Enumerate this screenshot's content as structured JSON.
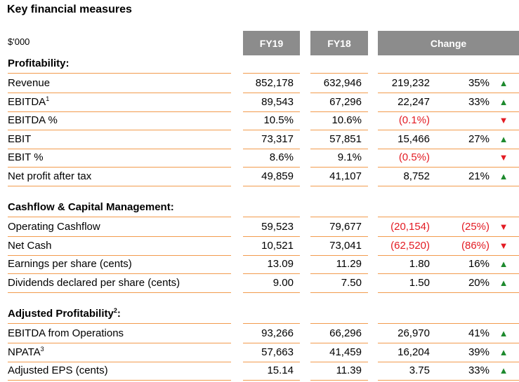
{
  "title": "Key financial measures",
  "unit": "$'000",
  "headers": {
    "fy19": "FY19",
    "fy18": "FY18",
    "change": "Change"
  },
  "sections": [
    {
      "title": "Profitability:",
      "title_sup": "",
      "rows": [
        {
          "label": "Revenue",
          "sup": "",
          "fy19": "852,178",
          "fy18": "632,946",
          "change": "219,232",
          "pct": "35%",
          "trend": "up"
        },
        {
          "label": "EBITDA",
          "sup": "1",
          "fy19": "89,543",
          "fy18": "67,296",
          "change": "22,247",
          "pct": "33%",
          "trend": "up"
        },
        {
          "label": "EBITDA %",
          "sup": "",
          "fy19": "10.5%",
          "fy18": "10.6%",
          "change": "(0.1%)",
          "pct": "",
          "trend": "down"
        },
        {
          "label": "EBIT",
          "sup": "",
          "fy19": "73,317",
          "fy18": "57,851",
          "change": "15,466",
          "pct": "27%",
          "trend": "up"
        },
        {
          "label": "EBIT %",
          "sup": "",
          "fy19": "8.6%",
          "fy18": "9.1%",
          "change": "(0.5%)",
          "pct": "",
          "trend": "down"
        },
        {
          "label": "Net profit after tax",
          "sup": "",
          "fy19": "49,859",
          "fy18": "41,107",
          "change": "8,752",
          "pct": "21%",
          "trend": "up"
        }
      ]
    },
    {
      "title": "Cashflow & Capital Management:",
      "title_sup": "",
      "rows": [
        {
          "label": "Operating Cashflow",
          "sup": "",
          "fy19": "59,523",
          "fy18": "79,677",
          "change": "(20,154)",
          "pct": "(25%)",
          "trend": "down"
        },
        {
          "label": "Net Cash",
          "sup": "",
          "fy19": "10,521",
          "fy18": "73,041",
          "change": "(62,520)",
          "pct": "(86%)",
          "trend": "down"
        },
        {
          "label": "Earnings per share (cents)",
          "sup": "",
          "fy19": "13.09",
          "fy18": "11.29",
          "change": "1.80",
          "pct": "16%",
          "trend": "up"
        },
        {
          "label": "Dividends declared per share (cents)",
          "sup": "",
          "fy19": "9.00",
          "fy18": "7.50",
          "change": "1.50",
          "pct": "20%",
          "trend": "up"
        }
      ]
    },
    {
      "title": "Adjusted Profitability",
      "title_sup": "2",
      "title_suffix": ":",
      "rows": [
        {
          "label": "EBITDA from Operations",
          "sup": "",
          "fy19": "93,266",
          "fy18": "66,296",
          "change": "26,970",
          "pct": "41%",
          "trend": "up"
        },
        {
          "label": "NPATA",
          "sup": "3",
          "fy19": "57,663",
          "fy18": "41,459",
          "change": "16,204",
          "pct": "39%",
          "trend": "up"
        },
        {
          "label": "Adjusted EPS (cents)",
          "sup": "",
          "fy19": "15.14",
          "fy18": "11.39",
          "change": "3.75",
          "pct": "33%",
          "trend": "up"
        }
      ]
    }
  ],
  "arrows": {
    "up": "▲",
    "down": "▼"
  },
  "colors": {
    "header_bg": "#8c8c8c",
    "rule": "#f29b4d",
    "negative": "#e31b23",
    "positive_arrow": "#1e8a2e"
  }
}
